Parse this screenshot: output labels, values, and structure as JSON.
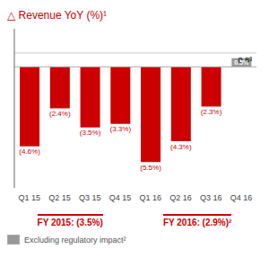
{
  "chart_data": {
    "type": "bar",
    "title": "△ Revenue YoY (%)¹",
    "categories": [
      "Q1 15",
      "Q2 15",
      "Q3 15",
      "Q4 15",
      "Q1 16",
      "Q2 16",
      "Q3 16",
      "Q4 16"
    ],
    "values": [
      -4.6,
      -2.4,
      -3.5,
      -3.3,
      -5.5,
      -4.3,
      -2.3,
      0.5
    ],
    "value_labels": [
      "(4.6%)",
      "(2.4%)",
      "(3.5%)",
      "(3.3%)",
      "(5.5%)",
      "(4.3%)",
      "(2.3%)",
      "0.5%"
    ],
    "data_labels": true,
    "colors": [
      "#cc0000",
      "#cc0000",
      "#cc0000",
      "#cc0000",
      "#cc0000",
      "#cc0000",
      "#cc0000",
      "#999999"
    ],
    "ylim": [
      -7.0,
      2.2
    ],
    "tick_labels": "x",
    "grid": false,
    "annotations": [
      {
        "text": "0.8³",
        "y": 0.8
      },
      {
        "text": "FY 2015: (3.5%)"
      },
      {
        "text": "FY 2016: (2.9%)²"
      },
      {
        "text": "Excluding regulatory impact²",
        "color": "#999999"
      }
    ]
  }
}
